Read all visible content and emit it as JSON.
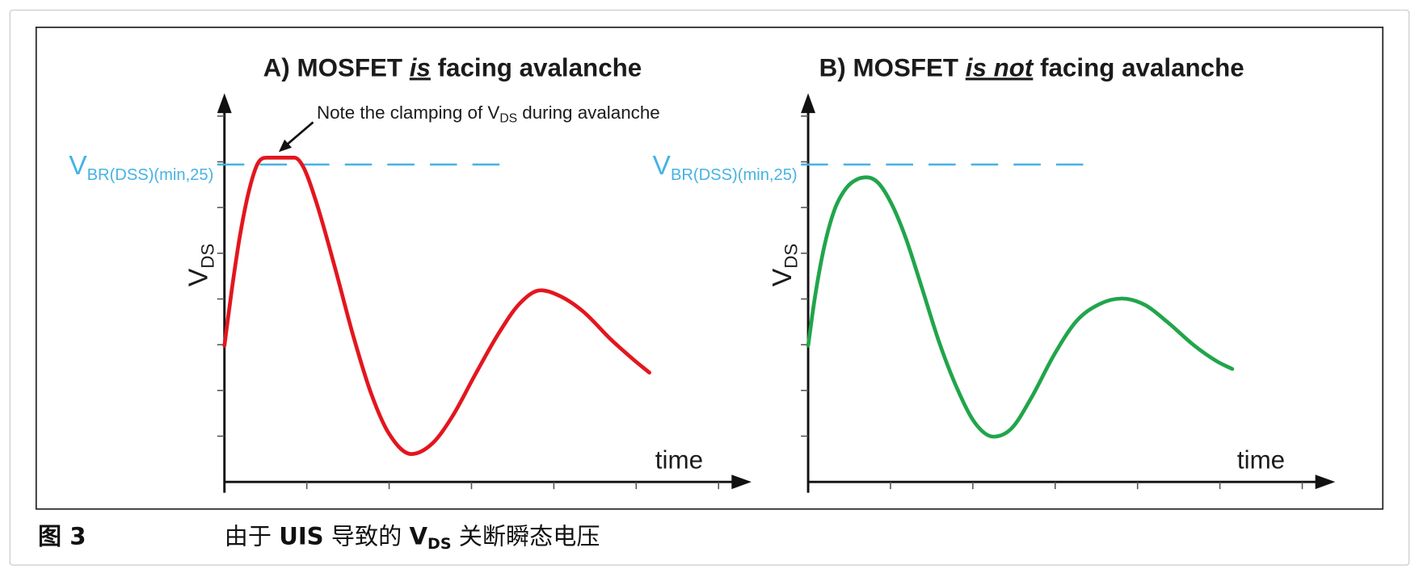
{
  "figure": {
    "number_label": "图 3",
    "caption": {
      "part1": "由于 ",
      "part2_bold": "UIS",
      "part3": " 导致的 ",
      "part4_bold": "V",
      "part5_bold_sub": "DS",
      "part6": " 关断瞬态电压"
    }
  },
  "chart_data": [
    {
      "type": "line",
      "title": {
        "prefix": "A) MOSFET ",
        "emphasis": "is",
        "suffix": " facing avalanche"
      },
      "xlabel": "time",
      "ylabel": {
        "main": "V",
        "sub": "DS"
      },
      "xlim": [
        0,
        6.4
      ],
      "ylim": [
        0,
        8.5
      ],
      "xticks": [
        1,
        2,
        3,
        4,
        5,
        6
      ],
      "yticks": [
        1,
        2,
        3,
        4,
        5,
        6,
        7,
        8
      ],
      "grid": false,
      "reference_line": {
        "label": {
          "main": "V",
          "sub": "BR(DSS)(min,25)"
        },
        "y": 6.94,
        "x": [
          0,
          3.4
        ],
        "line_style": "dashed",
        "color": "#45b3e3"
      },
      "annotation": {
        "pre": "Note the clamping of V",
        "sub": "DS",
        "post": " during avalanche"
      },
      "series": [
        {
          "color": "#e3161e",
          "x": [
            0,
            0.09,
            0.19,
            0.3,
            0.41,
            0.52,
            0.85,
            0.96,
            1.12,
            1.34,
            1.56,
            1.78,
            2.0,
            2.27,
            2.53,
            2.77,
            3.04,
            3.32,
            3.59,
            3.84,
            4.09,
            4.36,
            4.69,
            4.97,
            5.16
          ],
          "y": [
            2.98,
            4.21,
            5.4,
            6.38,
            6.98,
            7.09,
            7.09,
            6.88,
            6.09,
            4.7,
            3.22,
            1.94,
            1.05,
            0.61,
            0.85,
            1.44,
            2.33,
            3.22,
            3.91,
            4.19,
            4.05,
            3.72,
            3.12,
            2.67,
            2.39
          ]
        }
      ]
    },
    {
      "type": "line",
      "title": {
        "prefix": "B) MOSFET ",
        "emphasis": "is not",
        "suffix": " facing avalanche"
      },
      "xlabel": "time",
      "ylabel": {
        "main": "V",
        "sub": "DS"
      },
      "xlim": [
        0,
        6.4
      ],
      "ylim": [
        0,
        8.5
      ],
      "xticks": [
        1,
        2,
        3,
        4,
        5,
        6
      ],
      "yticks": [
        1,
        2,
        3,
        4,
        5,
        6,
        7,
        8
      ],
      "grid": false,
      "reference_line": {
        "label": {
          "main": "V",
          "sub": "BR(DSS)(min,25)"
        },
        "y": 6.94,
        "x": [
          0,
          3.4
        ],
        "line_style": "dashed",
        "color": "#45b3e3"
      },
      "series": [
        {
          "color": "#21a54b",
          "x": [
            0,
            0.08,
            0.19,
            0.32,
            0.46,
            0.6,
            0.71,
            0.85,
            1.01,
            1.18,
            1.37,
            1.59,
            1.81,
            2.03,
            2.25,
            2.47,
            2.71,
            2.99,
            3.26,
            3.54,
            3.81,
            4.09,
            4.36,
            4.69,
            4.97,
            5.15
          ],
          "y": [
            2.98,
            4.01,
            5.1,
            5.95,
            6.42,
            6.62,
            6.66,
            6.54,
            6.09,
            5.36,
            4.31,
            3.06,
            2.04,
            1.28,
            0.99,
            1.17,
            1.84,
            2.79,
            3.52,
            3.89,
            4.01,
            3.87,
            3.5,
            2.98,
            2.63,
            2.47
          ]
        }
      ]
    }
  ]
}
